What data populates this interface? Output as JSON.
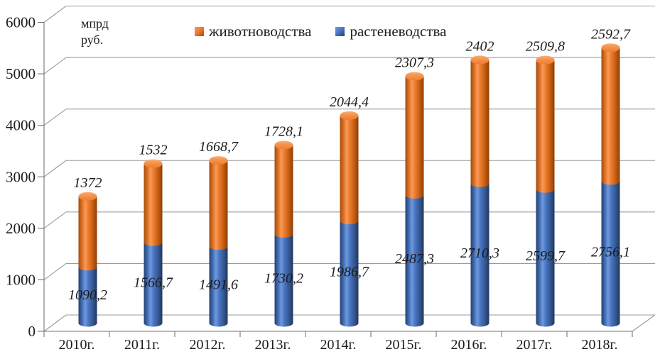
{
  "chart_data": {
    "type": "bar",
    "subtype": "stacked-3d-cylinder",
    "title": "",
    "unit_label": "мпрд\nруб.",
    "categories": [
      "2010г.",
      "2011г.",
      "2012г.",
      "2013г.",
      "2014г.",
      "2015г.",
      "2016г.",
      "2017г.",
      "2018г."
    ],
    "series": [
      {
        "name": "растеневодства",
        "color": "#4472C4",
        "values": [
          1090.2,
          1566.7,
          1491.6,
          1730.2,
          1986.7,
          2487.3,
          2710.3,
          2599.7,
          2756.1
        ],
        "labels": [
          "1090,2",
          "1566,7",
          "1491,6",
          "1730,2",
          "1986,7",
          "2487,3",
          "2710,3",
          "2599,7",
          "2756,1"
        ],
        "label_position": "inside-middle-of-blue-segment"
      },
      {
        "name": "животноводства",
        "color": "#ED7D31",
        "values": [
          1372,
          1532,
          1668.7,
          1728.1,
          2044.4,
          2307.3,
          2402,
          2509.8,
          2592.7
        ],
        "labels": [
          "1372",
          "1532",
          "1668,7",
          "1728,1",
          "2044,4",
          "2307,3",
          "2402",
          "2509,8",
          "2592,7"
        ],
        "label_position": "above-bar-top"
      }
    ],
    "legend": [
      {
        "label": "животноводства",
        "color": "#ED7D31"
      },
      {
        "label": "растеневодства",
        "color": "#4472C4"
      }
    ],
    "legend_position": "top",
    "y_axis": {
      "min": 0,
      "max": 6000,
      "step": 1000,
      "tick_labels": [
        "0",
        "1000",
        "2000",
        "3000",
        "4000",
        "5000",
        "6000"
      ]
    },
    "grid": true,
    "colors": {
      "grid_line": "#9b9b9b",
      "axis_line": "#767676",
      "label_text": "#1c1c1c"
    }
  }
}
